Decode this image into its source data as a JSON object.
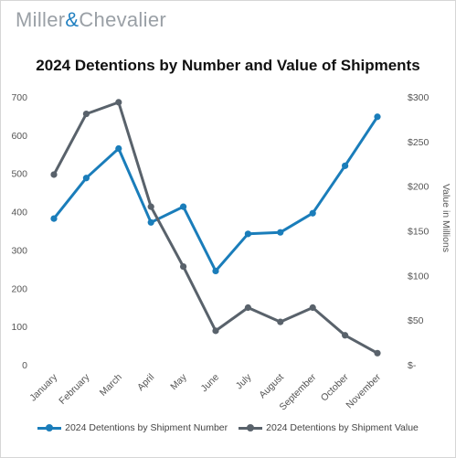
{
  "brand": {
    "name_part1": "Miller",
    "ampersand": "&",
    "name_part2": "Chevalier"
  },
  "chart_data": {
    "type": "line",
    "title": "2024 Detentions by Number and Value of Shipments",
    "categories": [
      "January",
      "February",
      "March",
      "April",
      "May",
      "June",
      "July",
      "August",
      "September",
      "October",
      "November"
    ],
    "y_left": {
      "ylim": [
        0,
        700
      ],
      "ticks": [
        0,
        100,
        200,
        300,
        400,
        500,
        600,
        700
      ],
      "tick_labels": [
        "0",
        "100",
        "200",
        "300",
        "400",
        "500",
        "600",
        "700"
      ]
    },
    "y_right": {
      "label": "Value in Millions",
      "ylim": [
        0,
        300
      ],
      "ticks": [
        0,
        50,
        100,
        150,
        200,
        250,
        300
      ],
      "tick_labels": [
        "$-",
        "$50",
        "$100",
        "$150",
        "$200",
        "$250",
        "$300"
      ]
    },
    "series": [
      {
        "name": "2024 Detentions by Shipment Number",
        "axis": "left",
        "color": "#1a7dba",
        "values": [
          382,
          488,
          565,
          372,
          413,
          245,
          342,
          346,
          396,
          520,
          648
        ]
      },
      {
        "name": "2024 Detentions by Shipment Value",
        "axis": "right",
        "color": "#59626b",
        "values": [
          213,
          281,
          294,
          177,
          110,
          38,
          64,
          48,
          64,
          33,
          13
        ]
      }
    ],
    "grid": false,
    "legend_position": "bottom"
  }
}
